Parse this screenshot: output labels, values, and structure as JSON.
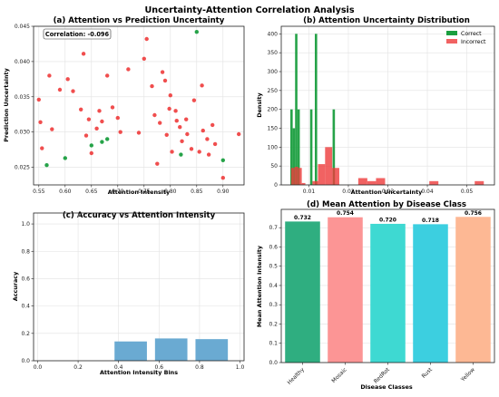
{
  "suptitle": "Uncertainty-Attention Correlation Analysis",
  "colors": {
    "correct": "#1a9e3f",
    "incorrect": "#ee3b3b",
    "accuracy_bar": "#6aaad2",
    "healthy": "#2fae80",
    "mosaic": "#fc9595",
    "redrot": "#3ed9d2",
    "rust": "#3ccfe0",
    "yellow": "#fdb894"
  },
  "chart_data": [
    {
      "id": "a",
      "type": "scatter",
      "title": "(a) Attention vs Prediction Uncertainty",
      "xlabel": "Attention Intensity",
      "ylabel": "Prediction Uncertainty",
      "xlim": [
        0.54,
        0.94
      ],
      "ylim": [
        0.0225,
        0.045
      ],
      "xticks": [
        "0.55",
        "0.60",
        "0.65",
        "0.70",
        "0.75",
        "0.80",
        "0.85",
        "0.90"
      ],
      "yticks": [
        "0.025",
        "0.030",
        "0.035",
        "0.040",
        "0.045"
      ],
      "grid": true,
      "annotation": "Correlation: -0.096",
      "series": [
        {
          "name": "Correct",
          "points": [
            [
              0.565,
              0.0253
            ],
            [
              0.6,
              0.0263
            ],
            [
              0.65,
              0.0281
            ],
            [
              0.67,
              0.0286
            ],
            [
              0.68,
              0.029
            ],
            [
              0.82,
              0.0268
            ],
            [
              0.85,
              0.0442
            ],
            [
              0.9,
              0.026
            ]
          ]
        },
        {
          "name": "Incorrect",
          "points": [
            [
              0.55,
              0.0346
            ],
            [
              0.553,
              0.0314
            ],
            [
              0.556,
              0.0277
            ],
            [
              0.57,
              0.038
            ],
            [
              0.575,
              0.0304
            ],
            [
              0.59,
              0.036
            ],
            [
              0.605,
              0.0375
            ],
            [
              0.615,
              0.0358
            ],
            [
              0.63,
              0.0332
            ],
            [
              0.635,
              0.0411
            ],
            [
              0.64,
              0.0295
            ],
            [
              0.645,
              0.0318
            ],
            [
              0.65,
              0.027
            ],
            [
              0.66,
              0.0305
            ],
            [
              0.665,
              0.033
            ],
            [
              0.67,
              0.0315
            ],
            [
              0.68,
              0.038
            ],
            [
              0.69,
              0.0335
            ],
            [
              0.7,
              0.032
            ],
            [
              0.705,
              0.03
            ],
            [
              0.72,
              0.0389
            ],
            [
              0.74,
              0.0299
            ],
            [
              0.75,
              0.0404
            ],
            [
              0.755,
              0.0432
            ],
            [
              0.765,
              0.0365
            ],
            [
              0.77,
              0.0324
            ],
            [
              0.775,
              0.0255
            ],
            [
              0.78,
              0.0313
            ],
            [
              0.785,
              0.0385
            ],
            [
              0.79,
              0.0373
            ],
            [
              0.793,
              0.0296
            ],
            [
              0.798,
              0.0333
            ],
            [
              0.8,
              0.0352
            ],
            [
              0.803,
              0.0272
            ],
            [
              0.81,
              0.033
            ],
            [
              0.812,
              0.0316
            ],
            [
              0.818,
              0.0307
            ],
            [
              0.822,
              0.0287
            ],
            [
              0.83,
              0.0318
            ],
            [
              0.832,
              0.0297
            ],
            [
              0.84,
              0.0276
            ],
            [
              0.845,
              0.0345
            ],
            [
              0.855,
              0.0272
            ],
            [
              0.86,
              0.0366
            ],
            [
              0.862,
              0.0302
            ],
            [
              0.87,
              0.029
            ],
            [
              0.873,
              0.0268
            ],
            [
              0.88,
              0.031
            ],
            [
              0.885,
              0.0283
            ],
            [
              0.9,
              0.0235
            ],
            [
              0.93,
              0.0297
            ]
          ]
        }
      ]
    },
    {
      "id": "b",
      "type": "bar",
      "title": "(b) Attention Uncertainty Distribution",
      "xlabel": "Attention Uncertainty",
      "ylabel": "Density",
      "xlim": [
        0.003,
        0.057
      ],
      "ylim": [
        0,
        420
      ],
      "xticks": [
        "0.01",
        "0.02",
        "0.03",
        "0.04",
        "0.05"
      ],
      "yticks": [
        "0",
        "50",
        "100",
        "150",
        "200",
        "250",
        "300",
        "350",
        "400"
      ],
      "grid": true,
      "legend_position": "top-right",
      "series": [
        {
          "name": "Correct",
          "bins": [
            [
              0.0053,
              0.0059,
              200
            ],
            [
              0.0059,
              0.0065,
              150
            ],
            [
              0.0065,
              0.0071,
              400
            ],
            [
              0.0071,
              0.0077,
              200
            ],
            [
              0.0103,
              0.0109,
              200
            ],
            [
              0.0115,
              0.0121,
              400
            ],
            [
              0.016,
              0.0166,
              200
            ]
          ]
        },
        {
          "name": "Incorrect",
          "bins": [
            [
              0.0055,
              0.0064,
              45
            ],
            [
              0.0064,
              0.0073,
              48
            ],
            [
              0.0073,
              0.0082,
              45
            ],
            [
              0.0082,
              0.0091,
              5
            ],
            [
              0.0109,
              0.0123,
              10
            ],
            [
              0.0123,
              0.0141,
              55
            ],
            [
              0.0141,
              0.0159,
              100
            ],
            [
              0.0159,
              0.0177,
              45
            ],
            [
              0.0225,
              0.0248,
              18
            ],
            [
              0.0248,
              0.027,
              10
            ],
            [
              0.027,
              0.0293,
              18
            ],
            [
              0.0405,
              0.0428,
              10
            ],
            [
              0.052,
              0.0543,
              10
            ]
          ]
        }
      ]
    },
    {
      "id": "c",
      "type": "bar",
      "title": "(c) Accuracy vs Attention Intensity",
      "xlabel": "Attention Intensity Bins",
      "ylabel": "Accuracy",
      "xlim": [
        -0.02,
        1.02
      ],
      "ylim": [
        0,
        1.08
      ],
      "xticks": [
        "0.0",
        "0.2",
        "0.4",
        "0.6",
        "0.8",
        "1.0"
      ],
      "yticks": [
        "0.0",
        "0.2",
        "0.4",
        "0.6",
        "0.8",
        "1.0"
      ],
      "grid": true,
      "bars": [
        [
          0.46,
          0.141
        ],
        [
          0.66,
          0.163
        ],
        [
          0.86,
          0.158
        ]
      ],
      "bar_width": 0.16
    },
    {
      "id": "d",
      "type": "bar",
      "title": "(d) Mean Attention by Disease Class",
      "xlabel": "Disease Classes",
      "ylabel": "Mean Attention Intensity",
      "ylim": [
        0,
        0.795
      ],
      "yticks": [
        "0.0",
        "0.1",
        "0.2",
        "0.3",
        "0.4",
        "0.5",
        "0.6",
        "0.7"
      ],
      "grid": true,
      "categories": [
        "Healthy",
        "Mosaic",
        "RedRot",
        "Rust",
        "Yellow"
      ],
      "values": [
        0.732,
        0.754,
        0.72,
        0.718,
        0.756
      ],
      "value_labels": [
        "0.732",
        "0.754",
        "0.720",
        "0.718",
        "0.756"
      ]
    }
  ]
}
